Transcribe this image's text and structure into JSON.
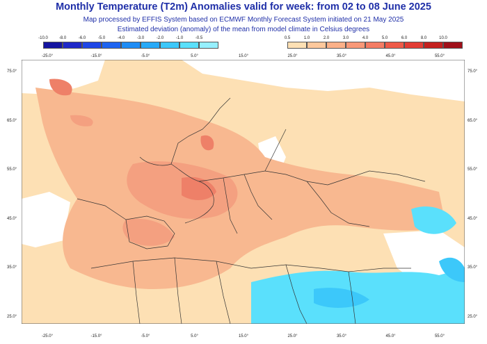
{
  "header": {
    "title": "Monthly Temperature (T2m) Anomalies valid for week: from 02 to 08 June 2025",
    "subtitle1": "Map processed by EFFIS System based on ECMWF Monthly Forecast System initiated on 21 May 2025",
    "subtitle2": "Estimated deviation (anomaly) of the mean from model climate in Celsius degrees"
  },
  "legend": {
    "cold": {
      "values": [
        "-10.0",
        "-8.0",
        "-6.0",
        "-5.0",
        "-4.0",
        "-3.0",
        "-2.0",
        "-1.0",
        "-0.5"
      ],
      "colors": [
        "#1414a0",
        "#1e28c8",
        "#1e46e6",
        "#1e64f0",
        "#1e8cf5",
        "#28aaf8",
        "#3cc8fa",
        "#5ae0fc",
        "#96f0ff"
      ]
    },
    "warm": {
      "values": [
        "0.5",
        "1.0",
        "2.0",
        "3.0",
        "4.0",
        "5.0",
        "6.0",
        "8.0",
        "10.0"
      ],
      "colors": [
        "#fde0b4",
        "#fdc89c",
        "#fbb088",
        "#f89878",
        "#f47c64",
        "#ee5a48",
        "#e23c34",
        "#c4201e",
        "#a0101a"
      ]
    }
  },
  "axes": {
    "lon_top": [
      "-25.0°",
      "-15.0°",
      "-5.0°",
      "5.0°",
      "15.0°",
      "25.0°",
      "35.0°",
      "45.0°",
      "55.0°"
    ],
    "lon_bottom": [
      "-25.0°",
      "-15.0°",
      "-5.0°",
      "5.0°",
      "15.0°",
      "25.0°",
      "35.0°",
      "45.0°",
      "55.0°"
    ],
    "lat": [
      "75.0°",
      "65.0°",
      "55.0°",
      "45.0°",
      "35.0°",
      "25.0°"
    ]
  },
  "map_colors": {
    "sea": "#ffffff",
    "weak_warm": "#fde0b4",
    "warm": "#f8b890",
    "hot": "#f4a080",
    "very_hot": "#ee8068",
    "cold": "#5ae0fc",
    "very_cold": "#3cc8fa",
    "border": "#333333"
  }
}
